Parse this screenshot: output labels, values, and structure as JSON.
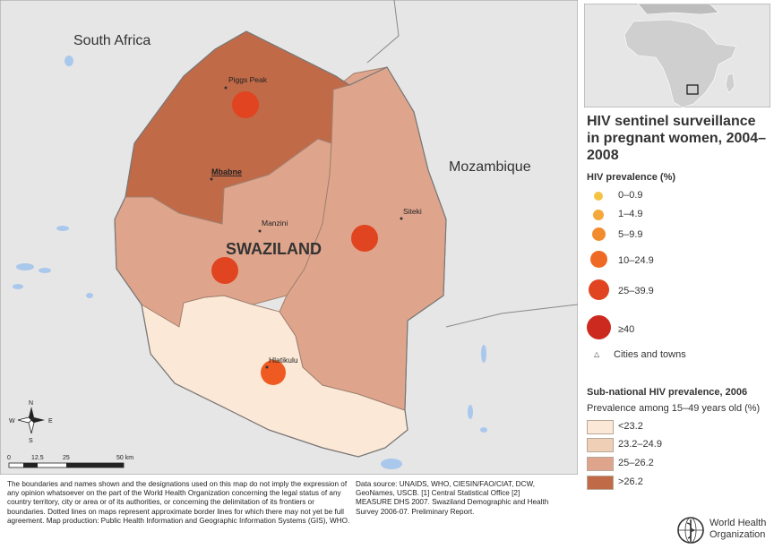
{
  "map": {
    "country_label": "SWAZILAND",
    "neighbors": [
      "South Africa",
      "Mozambique"
    ],
    "cities": [
      {
        "name": "Piggs Peak"
      },
      {
        "name": "Mbabne"
      },
      {
        "name": "Manzini"
      },
      {
        "name": "Siteki"
      },
      {
        "name": "Hlatikulu"
      }
    ],
    "scale": {
      "ticks": [
        "0",
        "12.5",
        "25",
        "50 km"
      ]
    },
    "compass": [
      "N",
      "S",
      "W",
      "E"
    ]
  },
  "title": "HIV sentinel surveillance in pregnant women, 2004–2008",
  "prevalence_legend": {
    "heading": "HIV prevalence (%)",
    "items": [
      {
        "label": "0–0.9",
        "color": "#f5c342"
      },
      {
        "label": "1–4.9",
        "color": "#f5a83a"
      },
      {
        "label": "5–9.9",
        "color": "#f28b2e"
      },
      {
        "label": "10–24.9",
        "color": "#ee6a24"
      },
      {
        "label": "25–39.9",
        "color": "#e04420"
      },
      {
        "label": "≥40",
        "color": "#cc2a1e"
      }
    ],
    "cities_label": "Cities and towns"
  },
  "subnational_legend": {
    "heading": "Sub-national HIV prevalence, 2006",
    "subheading": "Prevalence among 15–49 years old (%)",
    "items": [
      {
        "label": "<23.2",
        "color": "#fbe8d6"
      },
      {
        "label": "23.2–24.9",
        "color": "#efd0b6"
      },
      {
        "label": "25–26.2",
        "color": "#dfa58c"
      },
      {
        "label": ">26.2",
        "color": "#c06a48"
      }
    ]
  },
  "disclaimer": "The boundaries and names shown and the designations used on this map do not imply the expression of any opinion whatsoever on the part of the World Health Organization concerning the legal status of any country territory, city or area or of its authorities, or concerning the delimitation of its frontiers or boundaries. Dotted lines on maps represent approximate border lines for which there may not yet be full agreement. Map production: Public Health Information and Geographic Information Systems (GIS), WHO.",
  "data_source": "Data source: UNAIDS, WHO, CIESIN/FAO/CIAT, DCW, GeoNames, USCB. [1] Central Statistical Office [2] MEASURE DHS 2007. Swaziland Demographic and Health Survey 2006-07. Preliminary Report.",
  "who_name": [
    "World Health",
    "Organization"
  ]
}
